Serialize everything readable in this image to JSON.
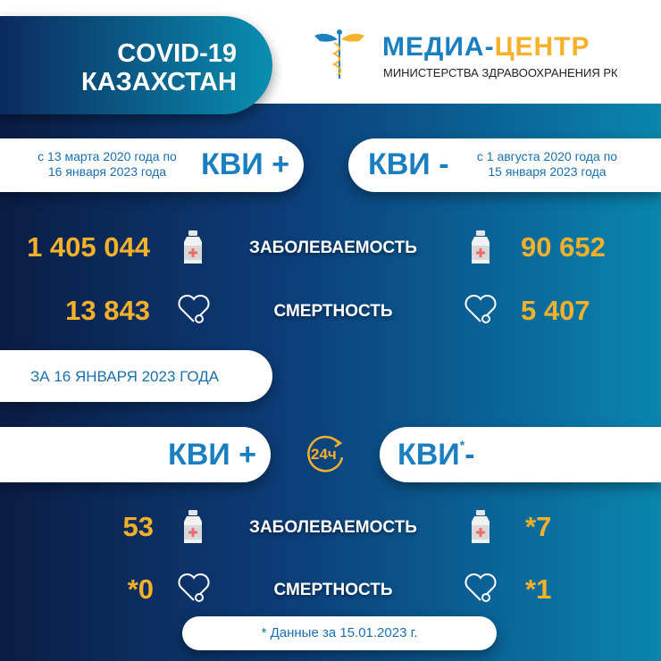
{
  "header": {
    "title_line1": "COVID-19",
    "title_line2": "КАЗАХСТАН",
    "logo_part1": "МЕДИА-",
    "logo_part2": "ЦЕНТР",
    "logo_subtitle": "МИНИСТЕРСТВА ЗДРАВООХРАНЕНИЯ РК"
  },
  "cumulative": {
    "left": {
      "period_line1": "с 13 марта 2020 года по",
      "period_line2": "16 января 2023 года",
      "label": "КВИ +"
    },
    "right": {
      "label": "КВИ -",
      "period_line1": "с 1 августа 2020 года по",
      "period_line2": "15 января 2023 года"
    },
    "rows": [
      {
        "label": "ЗАБОЛЕВАЕМОСТЬ",
        "left": "1 405 044",
        "right": "90 652",
        "icon": "medicine-bottle-icon"
      },
      {
        "label": "СМЕРТНОСТЬ",
        "left": "13 843",
        "right": "5 407",
        "icon": "heart-icon"
      }
    ]
  },
  "daily": {
    "date_label": "ЗА 16 ЯНВАРЯ 2023 ГОДА",
    "left_label": "КВИ +",
    "badge": "24ч",
    "right_label": "КВИ",
    "right_asterisk": "*",
    "right_sign": "-",
    "rows": [
      {
        "label": "ЗАБОЛЕВАЕМОСТЬ",
        "left": "53",
        "right": "*7"
      },
      {
        "label": "СМЕРТНОСТЬ",
        "left": "*0",
        "right": "*1"
      }
    ]
  },
  "footnote": "* Данные за 15.01.2023 г.",
  "colors": {
    "accent": "#f6b12a",
    "blue": "#1a7fc0"
  }
}
